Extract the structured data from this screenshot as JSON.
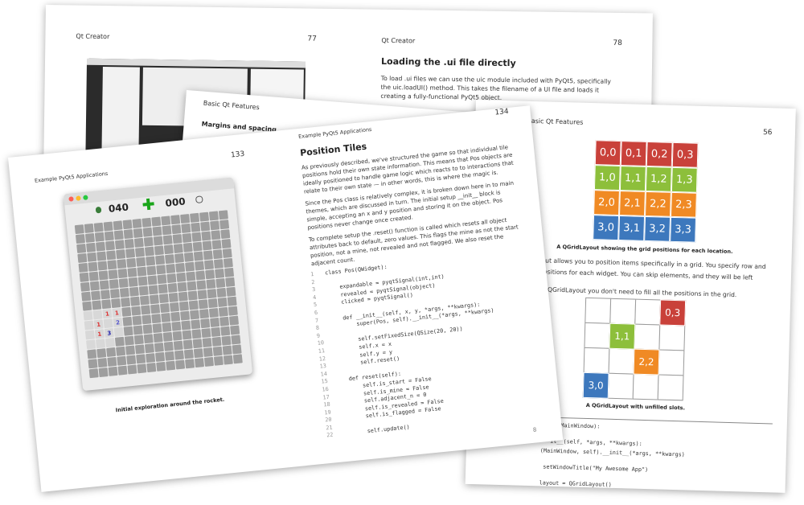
{
  "back_spread": {
    "left_header": "Qt Creator",
    "left_page_number": "77",
    "right_header": "Qt Creator",
    "right_page_number": "78",
    "heading": "Loading the .ui file directly",
    "paragraph": "To load .ui files we can use the uic module included with PyQt5, specifically the uic.loadUI() method. This takes the filename of a UI file and loads it creating a fully-functional PyQt5 object."
  },
  "middle_page": {
    "header": "Basic Qt Features",
    "heading": "Margins and spacing"
  },
  "grid_page": {
    "header": "Basic Qt Features",
    "page_number": "56",
    "grid": [
      [
        "0,0",
        "0,1",
        "0,2",
        "0,3"
      ],
      [
        "1,0",
        "1,1",
        "1,2",
        "1,3"
      ],
      [
        "2,0",
        "2,1",
        "2,2",
        "2,3"
      ],
      [
        "3,0",
        "3,1",
        "3,2",
        "3,3"
      ]
    ],
    "grid_caption": "A QGridLayout showing the grid positions for each location.",
    "text_lines": [
      "ayout allows you to position items specifically in a grid. You specify row and",
      "n positions for each widget. You can skip elements, and they will be left",
      ", for QGridLayout you don't need to fill all the positions in the grid."
    ],
    "sparse_cells": [
      "0,3",
      "1,1",
      "2,2",
      "3,0"
    ],
    "sparse_caption": "A QGridLayout with unfilled slots.",
    "code": [
      "ndow(QMainWindow):",
      "it__(self, *args, **kwargs):",
      "(MainWindow, self).__init__(*args, **kwargs)",
      "setWindowTitle(\"My Awesome App\")",
      "layout = QGridLayout()"
    ]
  },
  "front_spread": {
    "left_header": "Example PyQt5 Applications",
    "left_page_number": "133",
    "mine_count": "040",
    "clock": "000",
    "tile_numbers": [
      "1",
      "1",
      "1",
      "2",
      "1",
      "3"
    ],
    "caption": "Initial exploration around the rocket.",
    "right_header": "Example PyQt5 Applications",
    "right_page_number": "134",
    "heading": "Position Tiles",
    "paragraphs": [
      "As previously described, we've structured the game so that individual tile positions hold their own state information. This means that Pos objects are ideally positioned to handle game logic which reacts to to interactions that relate to their own state — in other words, this is where the magic is.",
      "Since the Pos class is relatively complex, it is broken down here in to main themes, which are discussed in turn. The initial setup __init__ block is simple, accepting an x and y position and storing it on the object. Pos positions never change once created.",
      "To complete setup the .reset() function is called which resets all object attributes back to default, zero values. This flags the mine as not the start position, not a mine, not revealed and not flagged. We also reset the adjacent count."
    ],
    "code": [
      {
        "n": "1",
        "text": "class Pos(QWidget):"
      },
      {
        "n": "2"
      },
      {
        "n": "3",
        "text": "    expandable = pyqtSignal(int,int)"
      },
      {
        "n": "4",
        "text": "    revealed = pyqtSignal(object)"
      },
      {
        "n": "5",
        "text": "    clicked = pyqtSignal()"
      },
      {
        "n": "6"
      },
      {
        "n": "7",
        "text": "    def __init__(self, x, y, *args, **kwargs):"
      },
      {
        "n": "8",
        "text": "        super(Pos, self).__init__(*args, **kwargs)"
      },
      {
        "n": "9"
      },
      {
        "n": "10",
        "text": "        self.setFixedSize(QSize(20, 20))"
      },
      {
        "n": "11",
        "text": "        self.x = x"
      },
      {
        "n": "12",
        "text": "        self.y = y"
      },
      {
        "n": "13",
        "text": "        self.reset()"
      },
      {
        "n": "14"
      },
      {
        "n": "15",
        "text": "    def reset(self):"
      },
      {
        "n": "16",
        "text": "        self.is_start = False"
      },
      {
        "n": "17",
        "text": "        self.is_mine = False"
      },
      {
        "n": "18",
        "text": "        self.adjacent_n = 0"
      },
      {
        "n": "19",
        "text": "        self.is_revealed = False"
      },
      {
        "n": "20",
        "text": "        self.is_flagged = False"
      },
      {
        "n": "21"
      },
      {
        "n": "22",
        "text": "        self.update()"
      }
    ],
    "footer_number": "8"
  }
}
